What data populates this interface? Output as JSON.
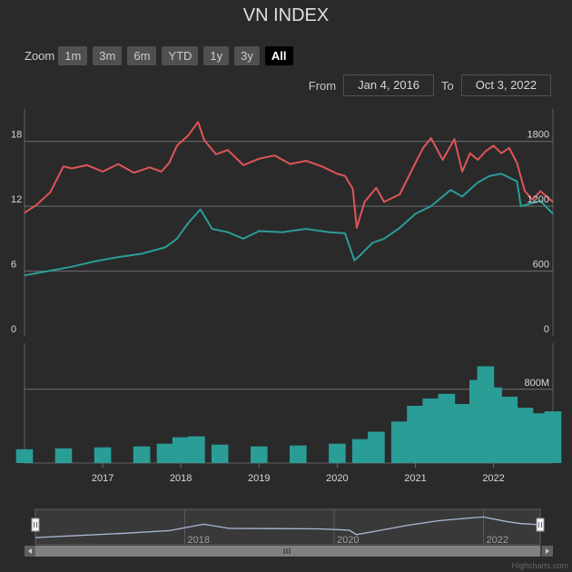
{
  "title": "VN INDEX",
  "zoom": {
    "label": "Zoom",
    "buttons": [
      "1m",
      "3m",
      "6m",
      "YTD",
      "1y",
      "3y",
      "All"
    ],
    "selected": "All"
  },
  "range": {
    "from_label": "From",
    "from_value": "Jan 4, 2016",
    "to_label": "To",
    "to_value": "Oct 3, 2022"
  },
  "credits": "Highcharts.com",
  "colors": {
    "price": "#e05555",
    "index": "#2a9d96",
    "volume": "#2a9d96",
    "navigator": "#aab8d8"
  },
  "chart_data": {
    "type": "line",
    "x_axis_labels": [
      "2017",
      "2018",
      "2019",
      "2020",
      "2021",
      "2022"
    ],
    "navigator_labels": [
      "2018",
      "2020",
      "2022"
    ],
    "panes": [
      {
        "name": "price",
        "left_axis": {
          "ticks": [
            "0",
            "6",
            "12",
            "18"
          ],
          "range": [
            0,
            21
          ]
        },
        "right_axis": {
          "ticks": [
            "0",
            "600",
            "1200",
            "1800"
          ],
          "range": [
            0,
            2100
          ]
        },
        "series": [
          {
            "axis": "left",
            "color": "#e05555",
            "x": [
              2016.0,
              2016.15,
              2016.33,
              2016.5,
              2016.6,
              2016.8,
              2017.0,
              2017.2,
              2017.4,
              2017.6,
              2017.75,
              2017.85,
              2017.95,
              2018.1,
              2018.22,
              2018.3,
              2018.45,
              2018.6,
              2018.8,
              2019.0,
              2019.2,
              2019.4,
              2019.6,
              2019.8,
              2020.0,
              2020.1,
              2020.2,
              2020.25,
              2020.35,
              2020.5,
              2020.6,
              2020.8,
              2021.0,
              2021.1,
              2021.2,
              2021.35,
              2021.5,
              2021.6,
              2021.7,
              2021.8,
              2021.9,
              2022.0,
              2022.1,
              2022.2,
              2022.3,
              2022.4,
              2022.5,
              2022.6,
              2022.76
            ],
            "y": [
              11.4,
              12.1,
              13.3,
              15.7,
              15.5,
              15.8,
              15.2,
              15.9,
              15.1,
              15.6,
              15.2,
              16.0,
              17.6,
              18.6,
              19.8,
              18.1,
              16.8,
              17.2,
              15.8,
              16.4,
              16.7,
              15.9,
              16.2,
              15.7,
              15.0,
              14.8,
              13.6,
              10.0,
              12.4,
              13.7,
              12.4,
              13.1,
              16.0,
              17.4,
              18.3,
              16.3,
              18.2,
              15.2,
              16.9,
              16.3,
              17.1,
              17.6,
              16.9,
              17.4,
              16.0,
              13.4,
              12.6,
              13.4,
              12.4
            ]
          },
          {
            "axis": "right",
            "color": "#2a9d96",
            "x": [
              2016.0,
              2016.3,
              2016.6,
              2016.9,
              2017.2,
              2017.5,
              2017.8,
              2017.95,
              2018.1,
              2018.25,
              2018.4,
              2018.6,
              2018.8,
              2019.0,
              2019.3,
              2019.6,
              2019.9,
              2020.1,
              2020.22,
              2020.3,
              2020.45,
              2020.6,
              2020.8,
              2021.0,
              2021.2,
              2021.45,
              2021.6,
              2021.8,
              2021.95,
              2022.1,
              2022.3,
              2022.35,
              2022.5,
              2022.6,
              2022.76
            ],
            "y": [
              560,
              600,
              640,
              690,
              730,
              760,
              820,
              900,
              1050,
              1170,
              990,
              960,
              900,
              970,
              960,
              990,
              960,
              950,
              700,
              750,
              860,
              900,
              1000,
              1130,
              1200,
              1350,
              1290,
              1420,
              1480,
              1500,
              1430,
              1200,
              1230,
              1250,
              1130
            ]
          }
        ]
      },
      {
        "name": "volume",
        "right_axis": {
          "ticks": [
            "800M"
          ],
          "ticks_values": [
            800
          ],
          "range": [
            0,
            1300
          ]
        },
        "series": [
          {
            "type": "column",
            "color": "#2a9d96",
            "unit": "M",
            "x": [
              2016.0,
              2016.5,
              2017.0,
              2017.5,
              2017.8,
              2018.0,
              2018.2,
              2018.5,
              2019.0,
              2019.5,
              2020.0,
              2020.3,
              2020.5,
              2020.8,
              2021.0,
              2021.2,
              2021.4,
              2021.6,
              2021.8,
              2021.9,
              2022.0,
              2022.2,
              2022.4,
              2022.6,
              2022.76
            ],
            "y": [
              150,
              160,
              170,
              180,
              210,
              280,
              290,
              200,
              180,
              190,
              210,
              260,
              340,
              450,
              620,
              700,
              750,
              640,
              900,
              1050,
              820,
              720,
              600,
              540,
              560
            ]
          }
        ]
      }
    ],
    "navigator_series": {
      "x": [
        2016.0,
        2016.6,
        2017.2,
        2017.8,
        2018.25,
        2018.6,
        2019.2,
        2019.8,
        2020.2,
        2020.3,
        2020.6,
        2021.0,
        2021.4,
        2021.8,
        2022.0,
        2022.3,
        2022.5,
        2022.76
      ],
      "y": [
        560,
        660,
        760,
        880,
        1170,
        980,
        970,
        960,
        900,
        700,
        880,
        1130,
        1330,
        1450,
        1500,
        1300,
        1200,
        1150
      ]
    }
  }
}
